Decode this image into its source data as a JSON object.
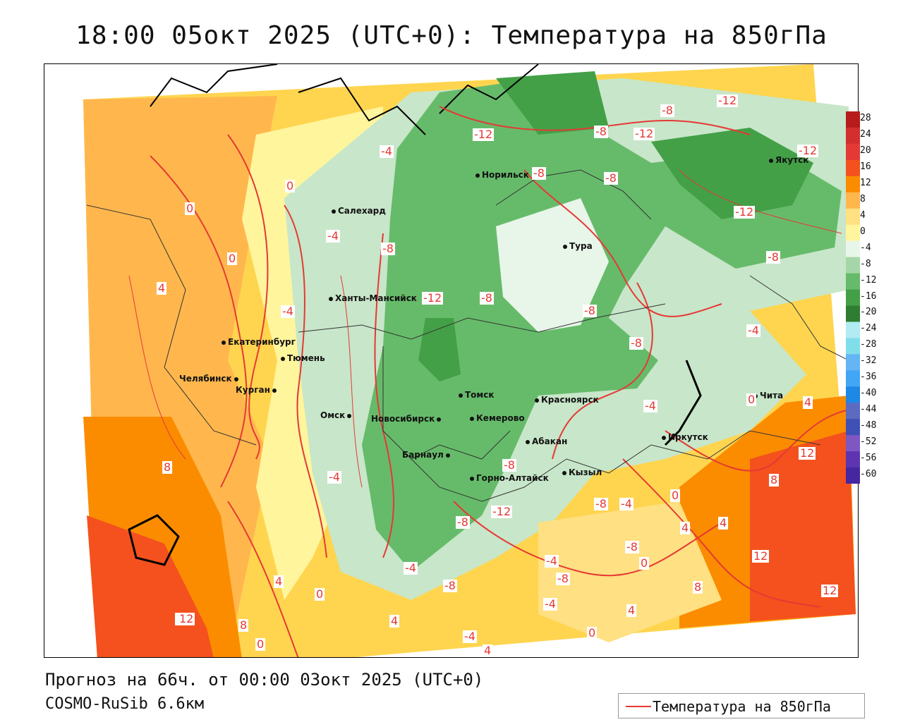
{
  "title": "18:00 05окт 2025 (UTC+0): Температура на 850гПа",
  "footer": {
    "forecast": "Прогноз на 66ч. от 00:00 03окт 2025 (UTC+0)",
    "model": "COSMO-RuSib 6.6км"
  },
  "legend": {
    "label": "Температура на 850гПа",
    "line_color": "#e53935"
  },
  "colorbar": {
    "labels": [
      "28",
      "24",
      "20",
      "16",
      "12",
      "8",
      "4",
      "0",
      "-4",
      "-8",
      "-12",
      "-16",
      "-20",
      "-24",
      "-28",
      "-32",
      "-36",
      "-40",
      "-44",
      "-48",
      "-52",
      "-56",
      "-60"
    ],
    "colors": [
      "#b71c1c",
      "#d32f2f",
      "#e53935",
      "#f4511e",
      "#fb8c00",
      "#ffb74d",
      "#ffe082",
      "#fff59d",
      "#e8f5e9",
      "#a5d6a7",
      "#66bb6a",
      "#43a047",
      "#2e7d32",
      "#b2ebf2",
      "#80deea",
      "#64b5f6",
      "#42a5f5",
      "#1e88e5",
      "#5c6bc0",
      "#3f51b5",
      "#7e57c2",
      "#5e35b1",
      "#4527a0"
    ]
  },
  "cities": [
    {
      "name": "Норильск"
    },
    {
      "name": "Якутск"
    },
    {
      "name": "Салехард"
    },
    {
      "name": "Тура"
    },
    {
      "name": "Ханты-Мансийск"
    },
    {
      "name": "Екатеринбург"
    },
    {
      "name": "Тюмень"
    },
    {
      "name": "Челябинск"
    },
    {
      "name": "Курган"
    },
    {
      "name": "Омск"
    },
    {
      "name": "Томск"
    },
    {
      "name": "Новосибирск"
    },
    {
      "name": "Кемерово"
    },
    {
      "name": "Красноярск"
    },
    {
      "name": "Абакан"
    },
    {
      "name": "Барнаул"
    },
    {
      "name": "Горно-Алтайск"
    },
    {
      "name": "Кызыл"
    },
    {
      "name": "Иркутск"
    },
    {
      "name": "Чита"
    }
  ],
  "isolines": [
    "-12",
    "-8",
    "-12",
    "-8",
    "-12",
    "-12",
    "-4",
    "0",
    "-8",
    "-8",
    "0",
    "-4",
    "-8",
    "-12",
    "-8",
    "-12",
    "-8",
    "-8",
    "4",
    "-4",
    "-8",
    "-4",
    "0",
    "-4",
    "0",
    "8",
    "-4",
    "-8",
    "-8",
    "-4",
    "4",
    "12",
    "8",
    "0",
    "-12",
    "-4",
    "-8",
    "-4",
    "4",
    "4",
    "-8",
    "-8",
    "-4",
    "-8",
    "0",
    "12",
    "4",
    "0",
    "12",
    "12",
    "8",
    "0",
    "-4",
    "4",
    "8",
    "4",
    "0",
    "12",
    "12",
    "4"
  ]
}
